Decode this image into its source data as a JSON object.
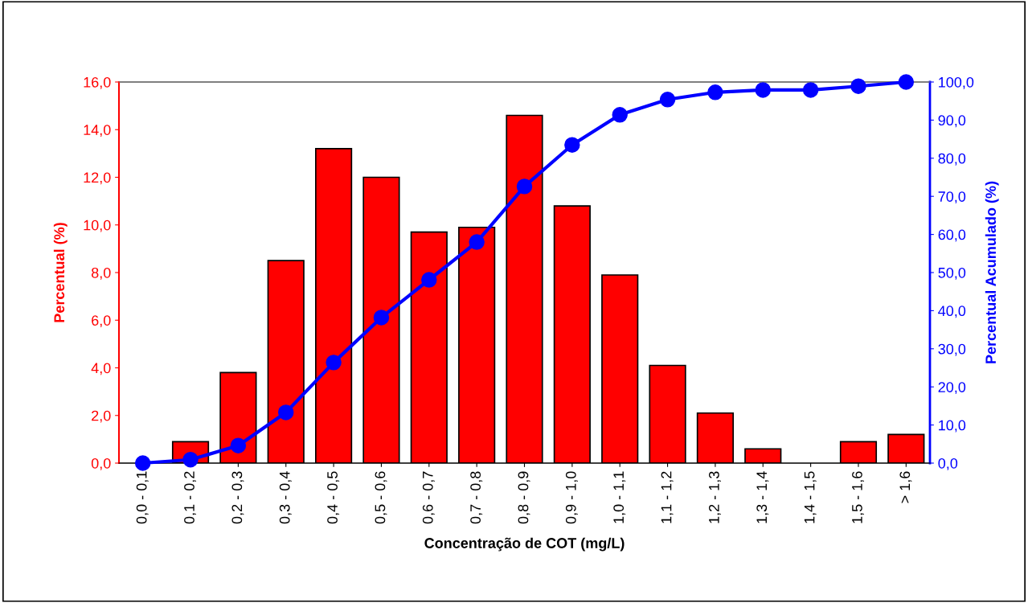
{
  "chart_data": {
    "type": "bar",
    "xlabel": "Concentração de COT (mg/L)",
    "ylabel": "Percentual (%)",
    "y2label": "Percentual Acumulado (%)",
    "categories": [
      "0,0 - 0,1",
      "0,1 - 0,2",
      "0,2 - 0,3",
      "0,3 - 0,4",
      "0,4 - 0,5",
      "0,5 - 0,6",
      "0,6 - 0,7",
      "0,7 - 0,8",
      "0,8 - 0,9",
      "0,9 - 1,0",
      "1,0 - 1,1",
      "1,1 - 1,2",
      "1,2 - 1,3",
      "1,3 - 1,4",
      "1,4 - 1,5",
      "1,5 - 1,6",
      "> 1,6"
    ],
    "series": [
      {
        "color": "#ff0000",
        "values": [
          0,
          0.9,
          3.8,
          8.5,
          13.2,
          12.0,
          9.7,
          9.9,
          14.6,
          10.8,
          7.9,
          4.1,
          2.1,
          0.6,
          0,
          0.9,
          1.2
        ]
      },
      {
        "type": "line",
        "axis": "y2",
        "color": "#0000ff",
        "marker": "circle",
        "line_style": "solid",
        "values": [
          0,
          0.9,
          4.6,
          13.3,
          26.4,
          38.2,
          48.1,
          58.0,
          72.6,
          83.5,
          91.4,
          95.4,
          97.3,
          97.9,
          97.9,
          98.9,
          100
        ]
      }
    ],
    "ylim": [
      0,
      16
    ],
    "yticks": [
      {
        "value": 0,
        "label": "0,0"
      },
      {
        "value": 2,
        "label": "2,0"
      },
      {
        "value": 4,
        "label": "4,0"
      },
      {
        "value": 6,
        "label": "6,0"
      },
      {
        "value": 8,
        "label": "8,0"
      },
      {
        "value": 10,
        "label": "10,0"
      },
      {
        "value": 12,
        "label": "12,0"
      },
      {
        "value": 14,
        "label": "14,0"
      },
      {
        "value": 16,
        "label": "16,0"
      }
    ],
    "y2lim": [
      0,
      100
    ],
    "y2ticks": [
      {
        "value": 0,
        "label": "0,0"
      },
      {
        "value": 10,
        "label": "10,0"
      },
      {
        "value": 20,
        "label": "20,0"
      },
      {
        "value": 30,
        "label": "30,0"
      },
      {
        "value": 40,
        "label": "40,0"
      },
      {
        "value": 50,
        "label": "50,0"
      },
      {
        "value": 60,
        "label": "60,0"
      },
      {
        "value": 70,
        "label": "70,0"
      },
      {
        "value": 80,
        "label": "80,0"
      },
      {
        "value": 90,
        "label": "90,0"
      },
      {
        "value": 100,
        "label": "100,0"
      }
    ],
    "grid": false,
    "legend": false
  }
}
